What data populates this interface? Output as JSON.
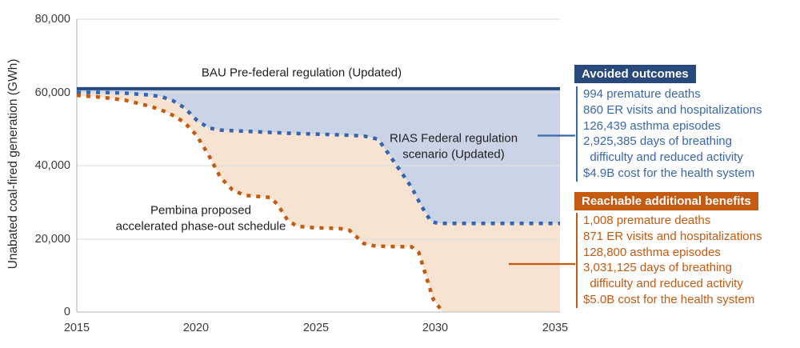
{
  "chart": {
    "y_axis_title": "Unabated coal-fired generation (GWh)",
    "y_ticks": [
      "80,000",
      "60,000",
      "40,000",
      "20,000",
      "0"
    ],
    "x_ticks": [
      "2015",
      "2020",
      "2025",
      "2030",
      "2035"
    ],
    "line_labels": {
      "bau": "BAU Pre-federal regulation (Updated)",
      "rias": "RIAS Federal regulation\nscenario (Updated)",
      "pembina": "Pembina proposed\naccelerated phase-out schedule"
    }
  },
  "chart_data": {
    "type": "area",
    "title": "",
    "xlabel": "",
    "ylabel": "Unabated coal-fired generation (GWh)",
    "xlim": [
      2015,
      2035.2
    ],
    "ylim": [
      0,
      80000
    ],
    "x_tick_years": [
      2015,
      2020,
      2025,
      2030,
      2035
    ],
    "y_tick_values": [
      0,
      20000,
      40000,
      60000,
      80000
    ],
    "grid": true,
    "legend_position": "inline-labels",
    "series": [
      {
        "id": "bau",
        "name": "BAU Pre-federal regulation (Updated)",
        "style": "solid",
        "color": "#28497C",
        "width": 4,
        "points": [
          [
            2015,
            61000
          ],
          [
            2035.2,
            61000
          ]
        ]
      },
      {
        "id": "rias",
        "name": "RIAS Federal regulation scenario (Updated)",
        "style": "dotted",
        "color": "#3465B0",
        "width": 4.5,
        "points": [
          [
            2015,
            60000
          ],
          [
            2016,
            60000
          ],
          [
            2017,
            59800
          ],
          [
            2018,
            59300
          ],
          [
            2018.5,
            58900
          ],
          [
            2019,
            57800
          ],
          [
            2019.5,
            55800
          ],
          [
            2020,
            52500
          ],
          [
            2020.5,
            50300
          ],
          [
            2021,
            49700
          ],
          [
            2022,
            49400
          ],
          [
            2023,
            49100
          ],
          [
            2024,
            48800
          ],
          [
            2025,
            48600
          ],
          [
            2026,
            48400
          ],
          [
            2027,
            48100
          ],
          [
            2027.6,
            47200
          ],
          [
            2028,
            43500
          ],
          [
            2028.5,
            38800
          ],
          [
            2029,
            34000
          ],
          [
            2029.4,
            29000
          ],
          [
            2029.8,
            24800
          ],
          [
            2030.1,
            24200
          ],
          [
            2035.2,
            24200
          ]
        ]
      },
      {
        "id": "pembina",
        "name": "Pembina proposed accelerated phase-out schedule",
        "style": "dotted",
        "color": "#C55A11",
        "width": 4.5,
        "points": [
          [
            2015,
            59200
          ],
          [
            2016,
            58700
          ],
          [
            2017,
            57900
          ],
          [
            2018,
            56300
          ],
          [
            2018.5,
            55300
          ],
          [
            2019,
            53800
          ],
          [
            2019.5,
            51800
          ],
          [
            2020,
            48300
          ],
          [
            2020.5,
            43000
          ],
          [
            2021,
            36800
          ],
          [
            2021.5,
            33400
          ],
          [
            2022,
            31900
          ],
          [
            2022.7,
            31500
          ],
          [
            2023.1,
            31300
          ],
          [
            2023.4,
            29300
          ],
          [
            2023.8,
            25200
          ],
          [
            2024.2,
            23400
          ],
          [
            2025,
            23000
          ],
          [
            2026,
            22800
          ],
          [
            2026.4,
            22300
          ],
          [
            2027,
            18700
          ],
          [
            2027.4,
            18100
          ],
          [
            2028,
            17900
          ],
          [
            2029,
            17800
          ],
          [
            2029.3,
            16200
          ],
          [
            2029.6,
            9800
          ],
          [
            2029.9,
            3500
          ],
          [
            2030.3,
            0
          ]
        ]
      }
    ],
    "areas": [
      {
        "top": "bau",
        "bottom": "rias",
        "color": "#CBD4E7"
      },
      {
        "top": "rias",
        "bottom": "pembina",
        "color": "#F7E3D2"
      }
    ]
  },
  "panels": {
    "avoided": {
      "title": "Avoided outcomes",
      "header_bg": "#28497C",
      "text_color": "#3A67AB",
      "items": [
        "994 premature deaths",
        "860 ER visits and hospitalizations",
        "126,439 asthma episodes",
        "2,925,385 days of breathing\n  difficulty and reduced activity",
        "$4.9B cost for the health system"
      ]
    },
    "reachable": {
      "title": "Reachable additional benefits",
      "header_bg": "#C55A11",
      "text_color": "#C55A11",
      "items": [
        "1,008 premature deaths",
        "871 ER visits and hospitalizations",
        "128,800 asthma episodes",
        "3,031,125 days of breathing\n  difficulty and reduced activity",
        "$5.0B cost for the health system"
      ]
    }
  },
  "colors": {
    "bau_line": "#28497C",
    "rias_line": "#3465B0",
    "pembina_line": "#C55A11",
    "fill_between_bau_rias": "#CBD4E7",
    "fill_between_rias_pembina": "#F7E3D2",
    "gridline": "#E0E0E0",
    "axis_line": "#C4C4C4",
    "avoided_header_bg": "#28497C",
    "avoided_text": "#3A67AB",
    "reachable_header_bg": "#C55A11",
    "reachable_text": "#C55A11"
  }
}
